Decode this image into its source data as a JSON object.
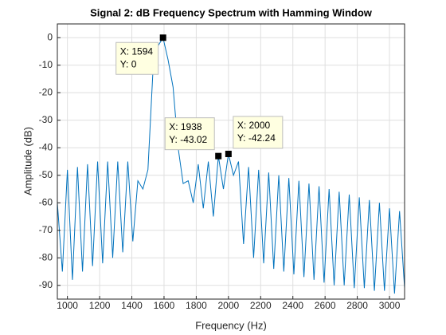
{
  "chart_data": {
    "type": "line",
    "title": "Signal 2: dB Frequency Spectrum with Hamming Window",
    "x_label": "Frequency (Hz)",
    "y_label": "Amplitude (dB)",
    "grid": true,
    "xlim": [
      937.5,
      3093.75
    ],
    "ylim": [
      -95,
      5
    ],
    "xticks": [
      1000,
      1200,
      1400,
      1600,
      1800,
      2000,
      2200,
      2400,
      2600,
      2800,
      3000
    ],
    "yticks": [
      0,
      -10,
      -20,
      -30,
      -40,
      -50,
      -60,
      -70,
      -80,
      -90
    ],
    "x": [
      937.5,
      968.75,
      1000,
      1031.25,
      1062.5,
      1093.75,
      1125,
      1156.25,
      1187.5,
      1218.75,
      1250,
      1281.25,
      1312.5,
      1343.75,
      1375,
      1406.25,
      1437.5,
      1468.75,
      1500,
      1531.25,
      1562.5,
      1593.75,
      1625,
      1656.25,
      1687.5,
      1718.75,
      1750,
      1781.25,
      1812.5,
      1843.75,
      1875,
      1906.25,
      1937.5,
      1968.75,
      2000,
      2031.25,
      2062.5,
      2093.75,
      2125,
      2156.25,
      2187.5,
      2218.75,
      2250,
      2281.25,
      2312.5,
      2343.75,
      2375,
      2406.25,
      2437.5,
      2468.75,
      2500,
      2531.25,
      2562.5,
      2593.75,
      2625,
      2656.25,
      2687.5,
      2718.75,
      2750,
      2781.25,
      2812.5,
      2843.75,
      2875,
      2906.25,
      2937.5,
      2968.75,
      3000,
      3031.25,
      3062.5,
      3093.75
    ],
    "series": [
      {
        "color": "#0072bd",
        "values": [
          -60,
          -85,
          -48,
          -88,
          -47,
          -85,
          -46,
          -83,
          -45,
          -82,
          -45,
          -80,
          -45,
          -78,
          -45,
          -74,
          -52,
          -55,
          -48,
          -12,
          -3,
          0,
          -8,
          -18,
          -40,
          -53,
          -52,
          -60,
          -46,
          -62,
          -45,
          -65,
          -43.02,
          -55,
          -42.24,
          -50,
          -45,
          -75,
          -47,
          -80,
          -48,
          -82,
          -49,
          -84,
          -50,
          -85,
          -51,
          -86,
          -52,
          -87,
          -53,
          -88,
          -54,
          -89,
          -55,
          -90,
          -56,
          -90,
          -57,
          -91,
          -58,
          -91,
          -59,
          -92,
          -60,
          -92,
          -62,
          -93,
          -63,
          -91
        ]
      }
    ],
    "annotations": [
      {
        "x": 1593.75,
        "y": 0,
        "text": [
          "X: 1594",
          "Y: 0"
        ]
      },
      {
        "x": 1937.5,
        "y": -43.02,
        "text": [
          "X: 1938",
          "Y: -43.02"
        ]
      },
      {
        "x": 2000,
        "y": -42.24,
        "text": [
          "X: 2000",
          "Y: -42.24"
        ]
      }
    ]
  }
}
